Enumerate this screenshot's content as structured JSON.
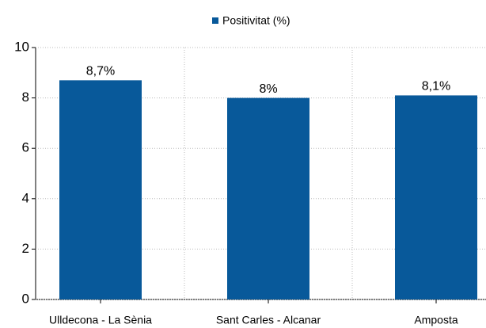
{
  "chart_data": {
    "type": "bar",
    "categories": [
      "Ulldecona - La Sènia",
      "Sant Carles - Alcanar",
      "Amposta"
    ],
    "series": [
      {
        "name": "Positivitat (%)",
        "color": "#08599a",
        "values": [
          8.7,
          8,
          8.1
        ],
        "value_labels": [
          "8,7%",
          "8%",
          "8,1%"
        ]
      }
    ],
    "ylim": [
      0,
      10
    ],
    "yticks": [
      0,
      2,
      4,
      6,
      8,
      10
    ],
    "grid": true,
    "legend": "top"
  }
}
